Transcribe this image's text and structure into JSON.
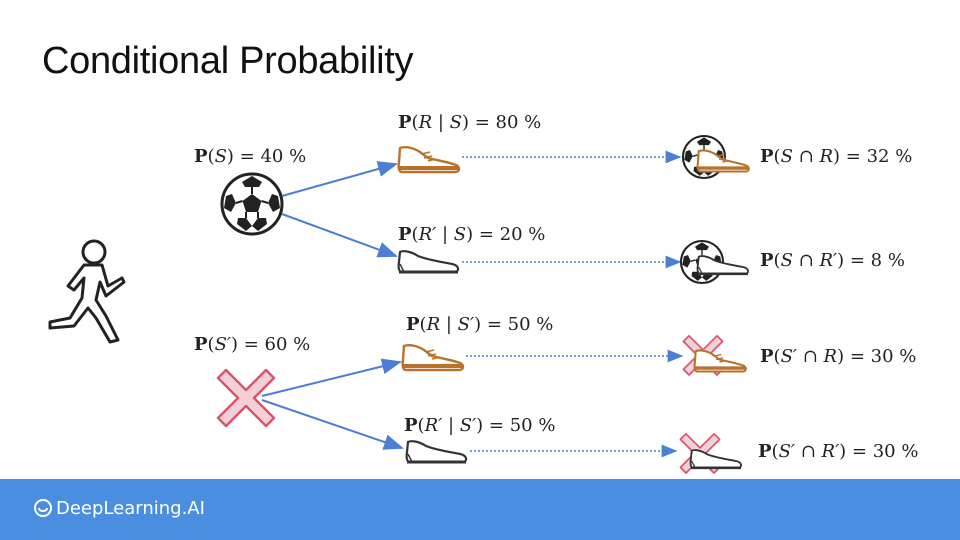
{
  "title": "Conditional Probability",
  "labels": {
    "p_s": {
      "fn": "P",
      "open": "(",
      "a": "S",
      "close": ")",
      "val": " = 40 %"
    },
    "p_sc": {
      "fn": "P",
      "open": "(",
      "a": "S′",
      "close": ")",
      "val": " = 60 %"
    },
    "p_r_s": {
      "fn": "P",
      "open": "(",
      "a": "R",
      "bar": " | ",
      "b": "S",
      "close": ")",
      "val": " = 80 %"
    },
    "p_rc_s": {
      "fn": "P",
      "open": "(",
      "a": "R′",
      "bar": " | ",
      "b": "S",
      "close": ")",
      "val": " = 20 %"
    },
    "p_r_sc": {
      "fn": "P",
      "open": "(",
      "a": "R",
      "bar": " | ",
      "b": "S′",
      "close": ")",
      "val": " = 50 %"
    },
    "p_rc_sc": {
      "fn": "P",
      "open": "(",
      "a": "R′",
      "bar": " | ",
      "b": "S′",
      "close": ")",
      "val": " = 50 %"
    },
    "p_s_and_r": {
      "fn": "P",
      "open": "(",
      "a": "S",
      "bar": " ∩ ",
      "b": "R",
      "close": ")",
      "val": " = 32 %"
    },
    "p_s_and_rc": {
      "fn": "P",
      "open": "(",
      "a": "S",
      "bar": " ∩ ",
      "b": "R′",
      "close": ")",
      "val": " = 8 %"
    },
    "p_sc_and_r": {
      "fn": "P",
      "open": "(",
      "a": "S′",
      "bar": " ∩ ",
      "b": "R",
      "close": ")",
      "val": " = 30 %"
    },
    "p_sc_and_rc": {
      "fn": "P",
      "open": "(",
      "a": "S′",
      "bar": " ∩ ",
      "b": "R′",
      "close": ")",
      "val": " = 30 %"
    }
  },
  "brand": "DeepLearning.AI",
  "colors": {
    "arrow": "#4a7fd4",
    "shoe_brown": "#b8722c",
    "cross_red": "#d9536a",
    "footer": "#4a8ee0"
  },
  "icons": [
    "runner-icon",
    "soccer-ball-icon",
    "cross-icon",
    "shoe-icon"
  ]
}
